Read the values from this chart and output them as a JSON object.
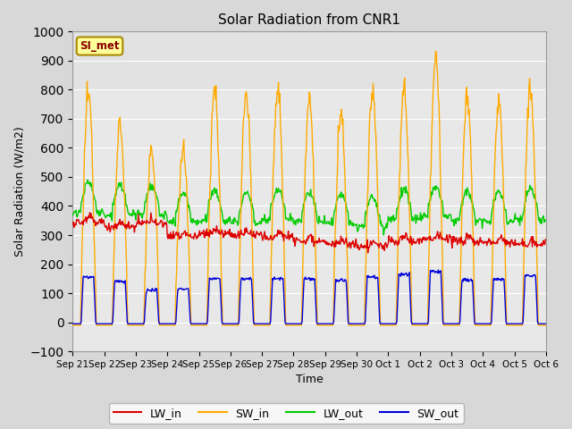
{
  "title": "Solar Radiation from CNR1",
  "xlabel": "Time",
  "ylabel": "Solar Radiation (W/m2)",
  "ylim": [
    -100,
    1000
  ],
  "n_days": 15,
  "xtick_labels": [
    "Sep 21",
    "Sep 22",
    "Sep 23",
    "Sep 24",
    "Sep 25",
    "Sep 26",
    "Sep 27",
    "Sep 28",
    "Sep 29",
    "Sep 30",
    "Oct 1",
    "Oct 2",
    "Oct 3",
    "Oct 4",
    "Oct 5",
    "Oct 6"
  ],
  "series": {
    "LW_in": {
      "color": "#dd0000",
      "lw": 1.0
    },
    "SW_in": {
      "color": "#ffaa00",
      "lw": 1.0
    },
    "LW_out": {
      "color": "#00cc00",
      "lw": 1.0
    },
    "SW_out": {
      "color": "#0000dd",
      "lw": 1.0
    }
  },
  "bg_color": "#d8d8d8",
  "plot_bg_color": "#e8e8e8",
  "annotation_text": "SI_met",
  "annotation_bg": "#ffff99",
  "annotation_border": "#aa8800",
  "annotation_text_color": "#880000",
  "grid_color": "#ffffff",
  "yticks": [
    -100,
    0,
    100,
    200,
    300,
    400,
    500,
    600,
    700,
    800,
    900,
    1000
  ],
  "peak_sw_in": [
    790,
    680,
    590,
    600,
    800,
    790,
    800,
    780,
    720,
    800,
    800,
    910,
    770,
    760,
    810
  ],
  "peak_sw_out": [
    155,
    140,
    110,
    115,
    150,
    150,
    150,
    150,
    145,
    155,
    165,
    175,
    145,
    148,
    160
  ],
  "lw_in_base": [
    345,
    330,
    340,
    295,
    305,
    300,
    295,
    280,
    270,
    260,
    280,
    285,
    280,
    275,
    270
  ],
  "lw_out_base": [
    400,
    390,
    390,
    365,
    370,
    365,
    375,
    365,
    360,
    350,
    375,
    385,
    370,
    365,
    375
  ]
}
